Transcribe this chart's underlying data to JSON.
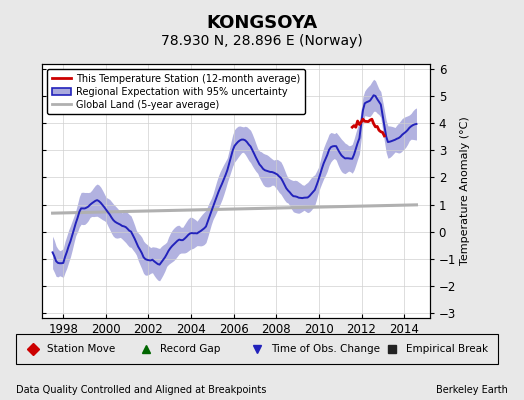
{
  "title": "KONGSOYA",
  "subtitle": "78.930 N, 28.896 E (Norway)",
  "ylabel": "Temperature Anomaly (°C)",
  "footer_left": "Data Quality Controlled and Aligned at Breakpoints",
  "footer_right": "Berkeley Earth",
  "xlim": [
    1997.0,
    2015.2
  ],
  "ylim": [
    -3.2,
    6.2
  ],
  "yticks": [
    -3,
    -2,
    -1,
    0,
    1,
    2,
    3,
    4,
    5,
    6
  ],
  "xticks": [
    1998,
    2000,
    2002,
    2004,
    2006,
    2008,
    2010,
    2012,
    2014
  ],
  "bg_color": "#e8e8e8",
  "plot_bg_color": "#ffffff",
  "regional_color": "#2222bb",
  "regional_fill_color": "#aaaadd",
  "station_color": "#cc0000",
  "global_color": "#b0b0b0",
  "title_fontsize": 13,
  "subtitle_fontsize": 10,
  "axis_fontsize": 8,
  "tick_fontsize": 8.5
}
